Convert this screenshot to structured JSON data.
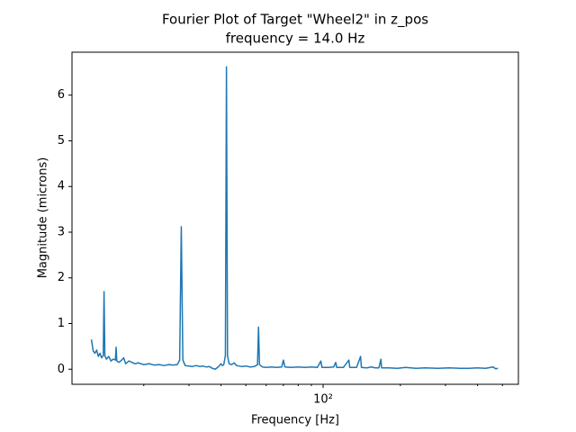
{
  "chart_data": {
    "type": "line",
    "title": "Fourier Plot of Target \"Wheel2\" in z_pos",
    "subtitle": "frequency = 14.0 Hz",
    "xlabel": "Frequency [Hz]",
    "ylabel": "Magnitude (microns)",
    "xscale": "log",
    "color": "#1f77b4",
    "xlim": [
      10.5,
      577
    ],
    "ylim": [
      -0.33,
      6.94
    ],
    "xticks": [
      {
        "value": 100,
        "label": "10²"
      }
    ],
    "xminorticks": [
      20,
      30,
      40,
      50,
      60,
      70,
      80,
      90,
      200,
      300,
      400,
      500
    ],
    "yticks": [
      0,
      1,
      2,
      3,
      4,
      5,
      6
    ],
    "x": [
      12.5,
      12.7,
      12.9,
      13.1,
      13.3,
      13.5,
      13.7,
      13.9,
      14.0,
      14.1,
      14.3,
      14.6,
      14.9,
      15.2,
      15.5,
      15.6,
      15.7,
      16.0,
      16.4,
      16.7,
      17.0,
      17.5,
      18,
      18.5,
      19,
      20,
      21,
      22,
      23,
      24,
      25,
      26,
      27,
      27.6,
      28,
      28.4,
      29,
      30,
      31,
      32,
      33,
      34,
      35,
      36,
      37,
      38,
      39,
      40,
      40.5,
      41,
      41.6,
      42,
      42.4,
      43,
      44,
      45,
      46,
      48,
      50,
      52,
      54,
      55.5,
      56,
      56.5,
      58,
      60,
      63,
      66,
      69,
      70,
      71,
      75,
      80,
      85,
      90,
      95,
      98,
      99,
      105,
      110,
      112,
      113,
      120,
      126,
      127,
      135,
      140,
      141,
      148,
      154,
      160,
      165,
      168,
      169,
      180,
      195,
      210,
      230,
      250,
      280,
      310,
      340,
      370,
      400,
      430,
      460,
      470,
      480
    ],
    "values": [
      0.65,
      0.4,
      0.35,
      0.42,
      0.28,
      0.35,
      0.25,
      0.3,
      1.7,
      0.3,
      0.22,
      0.28,
      0.18,
      0.22,
      0.2,
      0.48,
      0.18,
      0.15,
      0.2,
      0.25,
      0.12,
      0.18,
      0.15,
      0.12,
      0.14,
      0.1,
      0.12,
      0.09,
      0.1,
      0.08,
      0.1,
      0.09,
      0.1,
      0.2,
      3.12,
      0.2,
      0.08,
      0.07,
      0.06,
      0.08,
      0.06,
      0.07,
      0.05,
      0.06,
      0.02,
      0,
      0.05,
      0.12,
      0.08,
      0.1,
      0.3,
      6.62,
      0.3,
      0.12,
      0.1,
      0.14,
      0.08,
      0.06,
      0.07,
      0.05,
      0.06,
      0.1,
      0.92,
      0.1,
      0.05,
      0.04,
      0.05,
      0.04,
      0.05,
      0.2,
      0.05,
      0.04,
      0.05,
      0.04,
      0.05,
      0.04,
      0.18,
      0.04,
      0.04,
      0.05,
      0.15,
      0.04,
      0.04,
      0.2,
      0.04,
      0.04,
      0.28,
      0.04,
      0.03,
      0.05,
      0.03,
      0.03,
      0.22,
      0.03,
      0.03,
      0.02,
      0.04,
      0.02,
      0.03,
      0.02,
      0.03,
      0.02,
      0.02,
      0.03,
      0.02,
      0.05,
      0.01,
      0.02
    ]
  }
}
